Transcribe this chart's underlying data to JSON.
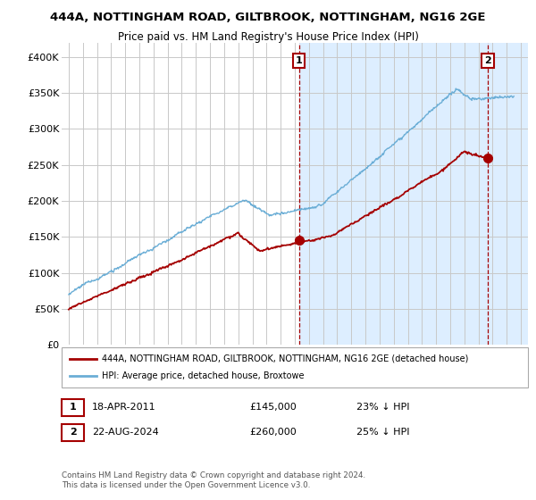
{
  "title": "444A, NOTTINGHAM ROAD, GILTBROOK, NOTTINGHAM, NG16 2GE",
  "subtitle": "Price paid vs. HM Land Registry's House Price Index (HPI)",
  "ylim": [
    0,
    420000
  ],
  "yticks": [
    0,
    50000,
    100000,
    150000,
    200000,
    250000,
    300000,
    350000,
    400000
  ],
  "ytick_labels": [
    "£0",
    "£50K",
    "£100K",
    "£150K",
    "£200K",
    "£250K",
    "£300K",
    "£350K",
    "£400K"
  ],
  "xlim_start": 1994.5,
  "xlim_end": 2027.5,
  "hpi_color": "#6baed6",
  "price_color": "#a50000",
  "marker1_x": 2011.3,
  "marker1_y": 145000,
  "marker2_x": 2024.65,
  "marker2_y": 260000,
  "shade1_start": 2011.3,
  "shade1_end": 2024.65,
  "shade1_color": "#ddeeff",
  "shade2_start": 2024.65,
  "shade2_end": 2027.5,
  "legend_property_label": "444A, NOTTINGHAM ROAD, GILTBROOK, NOTTINGHAM, NG16 2GE (detached house)",
  "legend_hpi_label": "HPI: Average price, detached house, Broxtowe",
  "footnote": "Contains HM Land Registry data © Crown copyright and database right 2024.\nThis data is licensed under the Open Government Licence v3.0.",
  "background_color": "#ffffff",
  "grid_color": "#c8c8c8"
}
